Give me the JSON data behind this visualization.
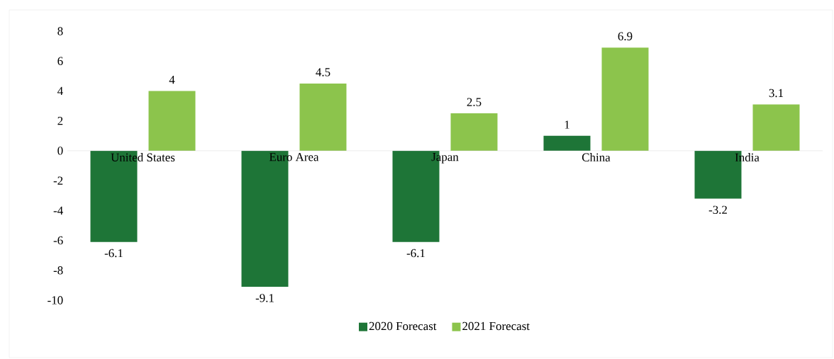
{
  "chart_data": {
    "type": "bar",
    "categories": [
      "United States",
      "Euro Area",
      "Japan",
      "China",
      "India"
    ],
    "series": [
      {
        "name": "2020 Forecast",
        "color": "#1e7537",
        "values": [
          -6.1,
          -9.1,
          -6.1,
          1,
          -3.2
        ]
      },
      {
        "name": "2021 Forecast",
        "color": "#8cc44c",
        "values": [
          4,
          4.5,
          2.5,
          6.9,
          3.1
        ]
      }
    ],
    "ylim": [
      -10,
      8
    ],
    "yticks": [
      -10,
      -8,
      -6,
      -4,
      -2,
      0,
      2,
      4,
      6,
      8
    ],
    "data_labels": true,
    "legend": "bottom",
    "grid": false
  }
}
